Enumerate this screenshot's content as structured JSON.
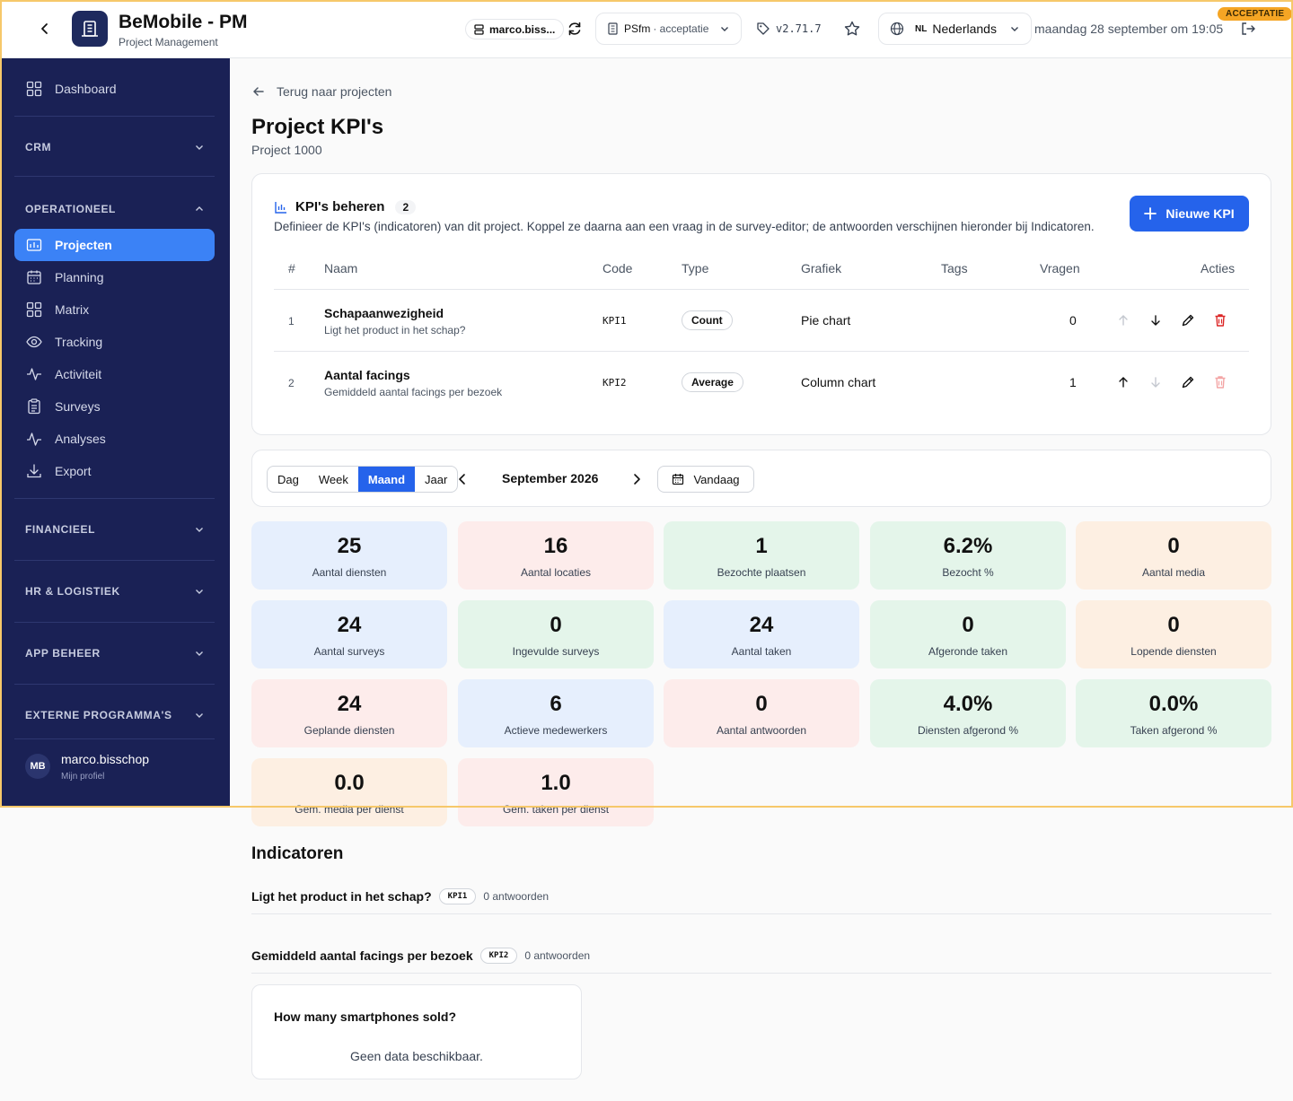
{
  "header": {
    "app_title": "BeMobile - PM",
    "app_subtitle": "Project Management",
    "user_short": "marco.biss...",
    "env_name": "PSfm",
    "env_suffix": "· acceptatie",
    "version": "v2.71.7",
    "lang_code": "NL",
    "lang_name": "Nederlands",
    "datetime": "maandag 28 september om 19:05",
    "env_badge": "ACCEPTATIE"
  },
  "sidebar": {
    "dashboard": "Dashboard",
    "sections": {
      "crm": "CRM",
      "operationeel": "OPERATIONEEL",
      "financieel": "FINANCIEEL",
      "hr": "HR & LOGISTIEK",
      "app": "APP BEHEER",
      "externe": "EXTERNE PROGRAMMA'S"
    },
    "items": [
      {
        "label": "Projecten"
      },
      {
        "label": "Planning"
      },
      {
        "label": "Matrix"
      },
      {
        "label": "Tracking"
      },
      {
        "label": "Activiteit"
      },
      {
        "label": "Surveys"
      },
      {
        "label": "Analyses"
      },
      {
        "label": "Export"
      }
    ],
    "user": {
      "initials": "MB",
      "name": "marco.bisschop",
      "sub": "Mijn profiel"
    }
  },
  "page": {
    "back_label": "Terug naar projecten",
    "title": "Project KPI's",
    "subtitle": "Project 1000"
  },
  "kpi_card": {
    "title": "KPI's beheren",
    "count": "2",
    "description": "Definieer de KPI's (indicatoren) van dit project. Koppel ze daarna aan een vraag in de survey-editor; de antwoorden verschijnen hieronder bij Indicatoren.",
    "new_button": "Nieuwe KPI",
    "columns": {
      "num": "#",
      "naam": "Naam",
      "code": "Code",
      "type": "Type",
      "grafiek": "Grafiek",
      "tags": "Tags",
      "vragen": "Vragen",
      "acties": "Acties"
    },
    "rows": [
      {
        "num": "1",
        "name": "Schapaanwezigheid",
        "desc": "Ligt het product in het schap?",
        "code": "KPI1",
        "type": "Count",
        "chart": "Pie chart",
        "tags": "",
        "questions": "0"
      },
      {
        "num": "2",
        "name": "Aantal facings",
        "desc": "Gemiddeld aantal facings per bezoek",
        "code": "KPI2",
        "type": "Average",
        "chart": "Column chart",
        "tags": "",
        "questions": "1"
      }
    ]
  },
  "period": {
    "modes": [
      "Dag",
      "Week",
      "Maand",
      "Jaar"
    ],
    "active_mode": "Maand",
    "label": "September 2026",
    "today": "Vandaag"
  },
  "stats": [
    {
      "value": "25",
      "label": "Aantal diensten",
      "color": "#e6effd"
    },
    {
      "value": "16",
      "label": "Aantal locaties",
      "color": "#fdeceb"
    },
    {
      "value": "1",
      "label": "Bezochte plaatsen",
      "color": "#e4f5ea"
    },
    {
      "value": "6.2%",
      "label": "Bezocht %",
      "color": "#e4f5ea"
    },
    {
      "value": "0",
      "label": "Aantal media",
      "color": "#fdefe2"
    },
    {
      "value": "24",
      "label": "Aantal surveys",
      "color": "#e6effd"
    },
    {
      "value": "0",
      "label": "Ingevulde surveys",
      "color": "#e4f5ea"
    },
    {
      "value": "24",
      "label": "Aantal taken",
      "color": "#e6effd"
    },
    {
      "value": "0",
      "label": "Afgeronde taken",
      "color": "#e4f5ea"
    },
    {
      "value": "0",
      "label": "Lopende diensten",
      "color": "#fdefe2"
    },
    {
      "value": "24",
      "label": "Geplande diensten",
      "color": "#fdeceb"
    },
    {
      "value": "6",
      "label": "Actieve medewerkers",
      "color": "#e6effd"
    },
    {
      "value": "0",
      "label": "Aantal antwoorden",
      "color": "#fdeceb"
    },
    {
      "value": "4.0%",
      "label": "Diensten afgerond %",
      "color": "#e4f5ea"
    },
    {
      "value": "0.0%",
      "label": "Taken afgerond %",
      "color": "#e4f5ea"
    },
    {
      "value": "0.0",
      "label": "Gem. media per dienst",
      "color": "#fdefe2"
    },
    {
      "value": "1.0",
      "label": "Gem. taken per dienst",
      "color": "#fdeceb"
    }
  ],
  "indicators": {
    "title": "Indicatoren",
    "items": [
      {
        "question": "Ligt het product in het schap?",
        "code": "KPI1",
        "answers": "0 antwoorden"
      },
      {
        "question": "Gemiddeld aantal facings per bezoek",
        "code": "KPI2",
        "answers": "0 antwoorden"
      }
    ],
    "chart_card": {
      "question": "How many smartphones sold?",
      "empty": "Geen data beschikbaar."
    }
  }
}
